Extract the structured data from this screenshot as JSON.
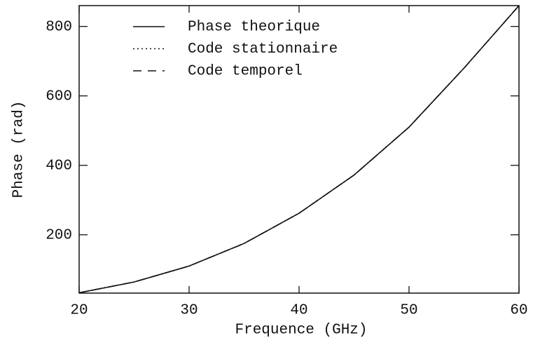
{
  "chart_data": {
    "type": "line",
    "xlabel": "Frequence (GHz)",
    "ylabel": "Phase (rad)",
    "x": [
      20,
      25,
      30,
      35,
      40,
      45,
      50,
      55,
      60
    ],
    "series": [
      {
        "name": "Phase theorique",
        "color": "#111111",
        "style": "solid",
        "values": [
          33,
          64,
          110,
          175,
          262,
          372,
          510,
          680,
          860
        ]
      },
      {
        "name": "Code stationnaire",
        "color": "#111111",
        "style": "dotted",
        "values": [
          33,
          64,
          110,
          175,
          262,
          372,
          510,
          680,
          860
        ]
      },
      {
        "name": "Code temporel",
        "color": "#111111",
        "style": "dashed",
        "values": [
          33,
          64,
          110,
          175,
          262,
          372,
          510,
          680,
          860
        ]
      }
    ],
    "xlim": [
      20,
      60
    ],
    "xticks": [
      20,
      30,
      40,
      50,
      60
    ],
    "ylim": [
      32,
      860
    ],
    "yticks": [
      200,
      400,
      600,
      800
    ],
    "legend": "upper-left",
    "grid": false
  }
}
